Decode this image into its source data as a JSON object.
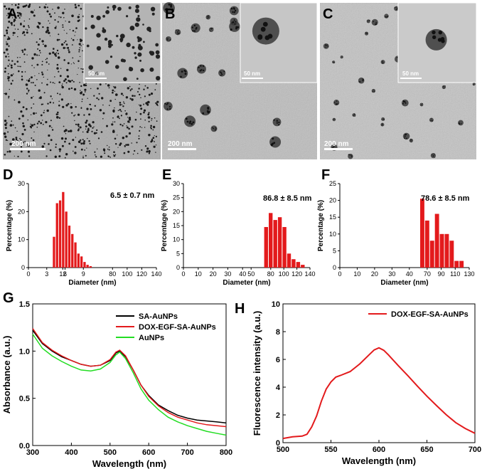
{
  "panels": {
    "A": {
      "label": "A",
      "scale_main": "200 nm",
      "scale_inset": "50 nm"
    },
    "B": {
      "label": "B",
      "scale_main": "200 nm",
      "scale_inset": "50 nm"
    },
    "C": {
      "label": "C",
      "scale_main": "200 nm",
      "scale_inset": "50 nm"
    },
    "D": {
      "label": "D"
    },
    "E": {
      "label": "E"
    },
    "F": {
      "label": "F"
    },
    "G": {
      "label": "G"
    },
    "H": {
      "label": "H"
    }
  },
  "colors": {
    "bar": "#e31a1c",
    "black": "#000000",
    "red": "#e31a1c",
    "green": "#22dd22"
  },
  "chart_data": [
    {
      "id": "D",
      "type": "bar",
      "annotation": "6.5 ± 0.7 nm",
      "xlabel": "Diameter (nm)",
      "ylabel": "Percentage (%)",
      "xlim": [
        0,
        140
      ],
      "ylim": [
        0,
        30
      ],
      "xticks": [
        "0",
        "3",
        "6",
        "9",
        "12",
        "80",
        "100",
        "120",
        "140"
      ],
      "yticks": [
        "0",
        "10",
        "20",
        "30"
      ],
      "bin_width": 0.5,
      "bins": [
        4.0,
        4.5,
        5.0,
        5.5,
        6.0,
        6.5,
        7.0,
        7.5,
        8.0,
        8.5,
        9.0,
        9.5,
        10.0
      ],
      "values": [
        11,
        23,
        24,
        27,
        20,
        15,
        12,
        9,
        5,
        4,
        2,
        1,
        0.5
      ]
    },
    {
      "id": "E",
      "type": "bar",
      "annotation": "86.8 ± 8.5 nm",
      "xlabel": "Diameter (nm)",
      "ylabel": "Percentage (%)",
      "xlim": [
        0,
        140
      ],
      "ylim": [
        0,
        30
      ],
      "xticks": [
        "0",
        "10",
        "20",
        "30",
        "40",
        "50",
        "80",
        "100",
        "120",
        "140"
      ],
      "yticks": [
        "0",
        "5",
        "10",
        "15",
        "20",
        "25",
        "30"
      ],
      "bin_width": 7,
      "bins": [
        70,
        77,
        84,
        91,
        98,
        105,
        112,
        119,
        126
      ],
      "values": [
        14.5,
        19.5,
        17,
        18,
        14.5,
        5,
        3,
        2,
        1
      ]
    },
    {
      "id": "F",
      "type": "bar",
      "annotation": "78.6 ± 8.5 nm",
      "xlabel": "Diameter (nm)",
      "ylabel": "Percentage (%)",
      "xlim": [
        0,
        130
      ],
      "ylim": [
        0,
        25
      ],
      "xticks": [
        "0",
        "10",
        "20",
        "30",
        "40",
        "70",
        "90",
        "110",
        "130"
      ],
      "yticks": [
        "0",
        "5",
        "10",
        "15",
        "20",
        "25"
      ],
      "bin_width": 7,
      "bins": [
        60,
        67,
        74,
        81,
        88,
        95,
        102,
        109,
        116
      ],
      "values": [
        20.5,
        14,
        8,
        16,
        10,
        10,
        8,
        2,
        2
      ]
    },
    {
      "id": "G",
      "type": "line",
      "xlabel": "Wavelength (nm)",
      "ylabel": "Absorbance (a.u.)",
      "xlim": [
        300,
        800
      ],
      "ylim": [
        0,
        1.5
      ],
      "xticks": [
        "300",
        "400",
        "500",
        "600",
        "700",
        "800"
      ],
      "yticks": [
        "0.0",
        "0.5",
        "1.0",
        "1.5"
      ],
      "legend": "top-right",
      "x": [
        300,
        325,
        350,
        375,
        400,
        425,
        450,
        475,
        500,
        515,
        525,
        540,
        560,
        580,
        600,
        625,
        650,
        675,
        700,
        725,
        750,
        775,
        800
      ],
      "series": [
        {
          "name": "SA-AuNPs",
          "color": "#000000",
          "values": [
            1.22,
            1.08,
            1.0,
            0.94,
            0.9,
            0.86,
            0.84,
            0.85,
            0.9,
            0.98,
            1.0,
            0.94,
            0.8,
            0.64,
            0.53,
            0.43,
            0.37,
            0.32,
            0.29,
            0.27,
            0.26,
            0.25,
            0.24
          ]
        },
        {
          "name": "DOX-EGF-SA-AuNPs",
          "color": "#e31a1c",
          "values": [
            1.24,
            1.09,
            1.01,
            0.95,
            0.9,
            0.86,
            0.84,
            0.85,
            0.91,
            0.99,
            1.01,
            0.95,
            0.8,
            0.64,
            0.52,
            0.42,
            0.35,
            0.3,
            0.27,
            0.24,
            0.22,
            0.21,
            0.2
          ]
        },
        {
          "name": "AuNPs",
          "color": "#22dd22",
          "values": [
            1.18,
            1.03,
            0.95,
            0.89,
            0.84,
            0.8,
            0.79,
            0.81,
            0.88,
            0.96,
            0.99,
            0.92,
            0.77,
            0.6,
            0.48,
            0.38,
            0.3,
            0.25,
            0.21,
            0.18,
            0.15,
            0.13,
            0.11
          ]
        }
      ]
    },
    {
      "id": "H",
      "type": "line",
      "xlabel": "Wavelength (nm)",
      "ylabel": "Fluorescence intensity (a.u.)",
      "xlim": [
        500,
        700
      ],
      "ylim": [
        0,
        10
      ],
      "xticks": [
        "500",
        "550",
        "600",
        "650",
        "700"
      ],
      "yticks": [
        "0",
        "2",
        "4",
        "6",
        "8",
        "10"
      ],
      "legend": "top-right",
      "x": [
        500,
        510,
        520,
        525,
        530,
        535,
        540,
        545,
        550,
        555,
        560,
        570,
        580,
        590,
        595,
        600,
        605,
        610,
        620,
        630,
        640,
        650,
        660,
        670,
        680,
        690,
        700
      ],
      "series": [
        {
          "name": "DOX-EGF-SA-AuNPs",
          "color": "#e31a1c",
          "values": [
            0.3,
            0.35,
            0.4,
            0.6,
            1.2,
            2.0,
            3.0,
            3.8,
            4.3,
            4.7,
            4.9,
            5.2,
            5.7,
            6.3,
            6.6,
            6.8,
            6.7,
            6.4,
            5.6,
            4.8,
            4.0,
            3.3,
            2.7,
            2.1,
            1.5,
            1.0,
            0.6
          ]
        }
      ]
    }
  ]
}
